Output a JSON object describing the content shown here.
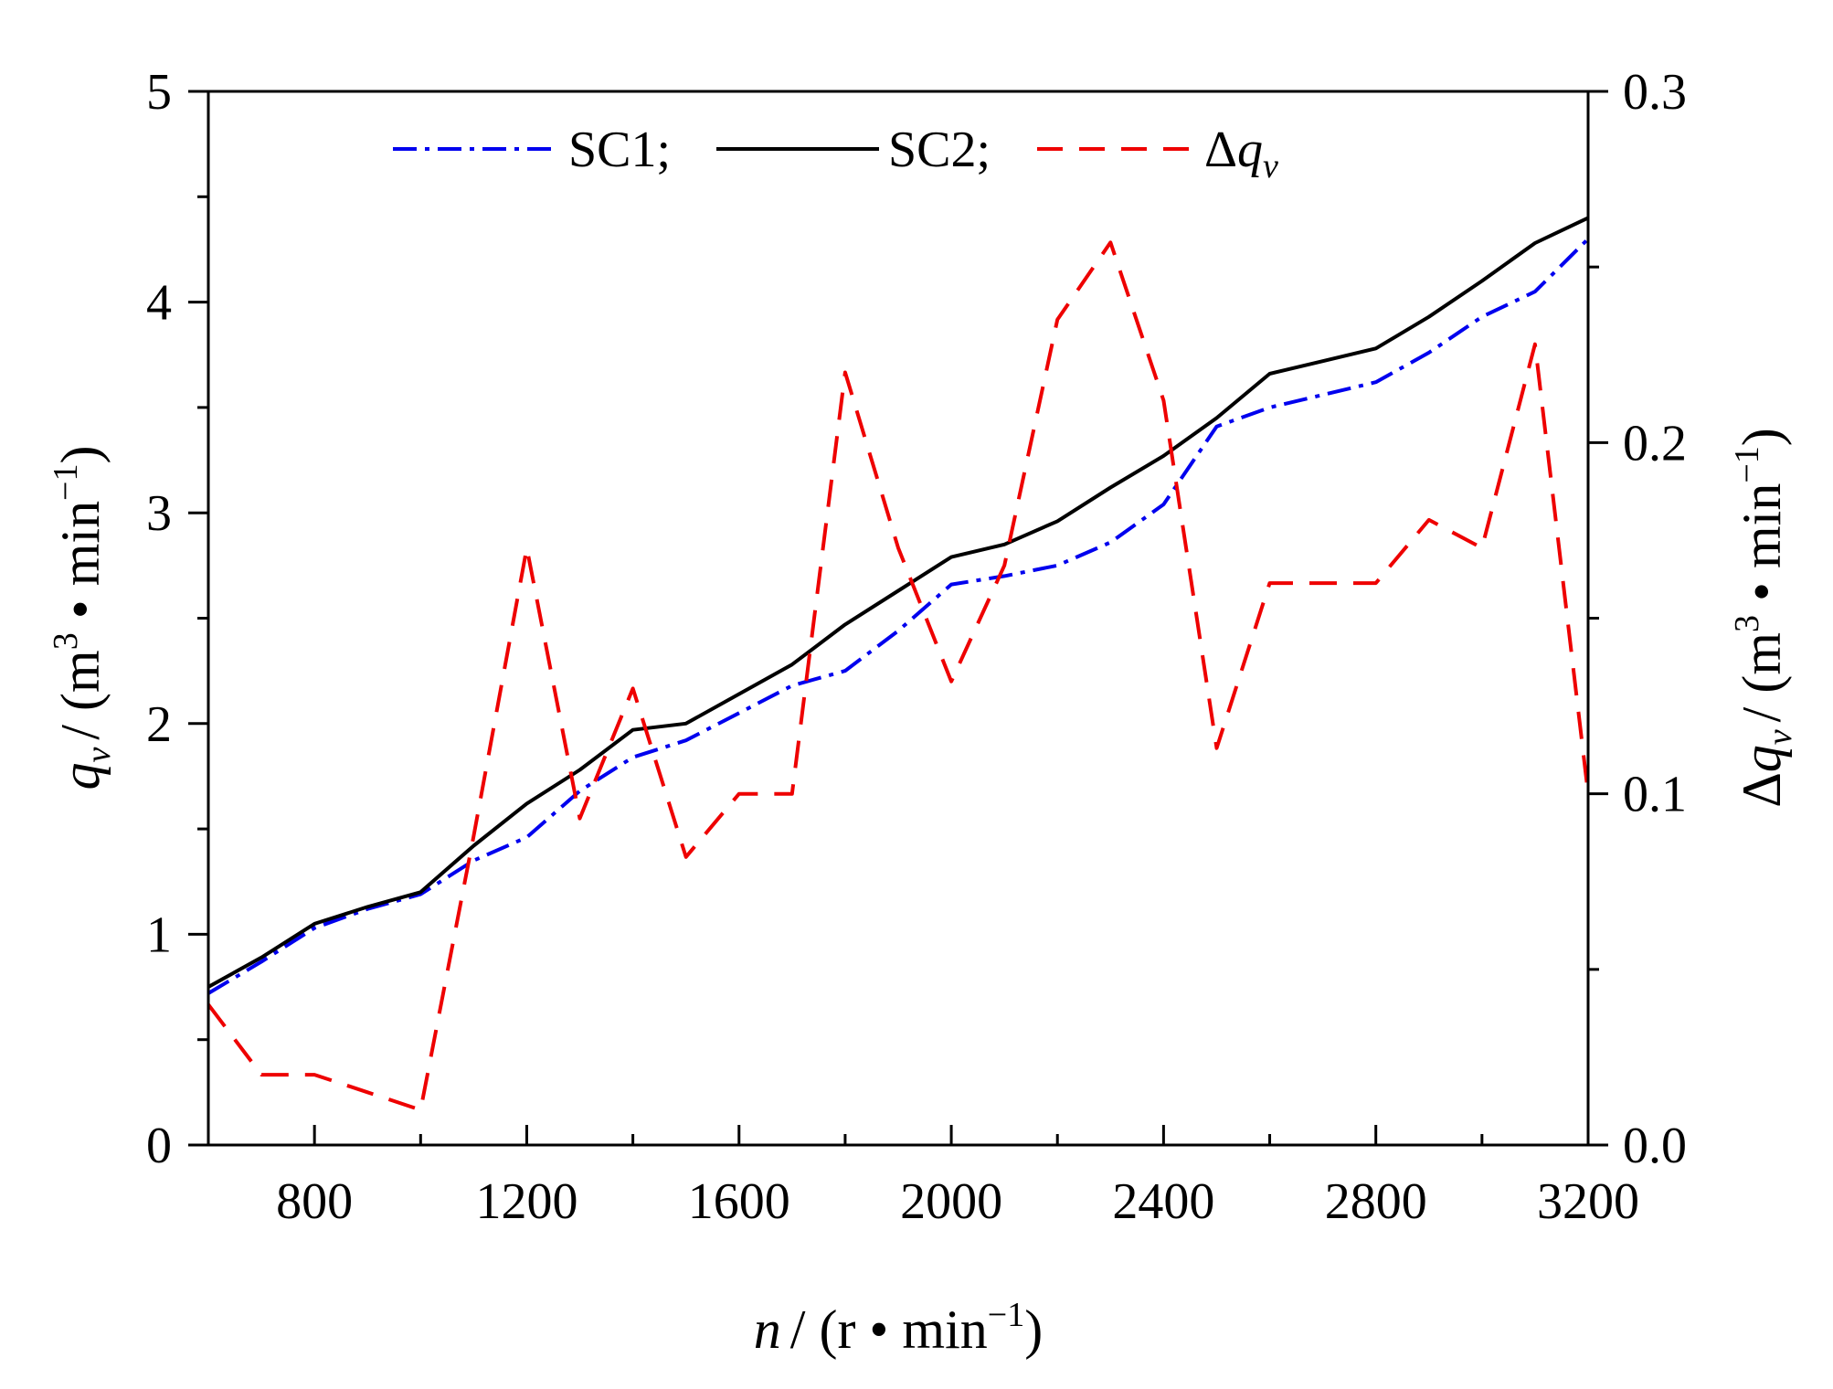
{
  "chart_data": {
    "type": "line",
    "x_axis": {
      "var": "n",
      "title_after": "/ (r • min",
      "sup": "−1",
      "close": ")",
      "range": [
        600,
        3200
      ],
      "ticks": [
        800,
        1200,
        1600,
        2000,
        2400,
        2800,
        3200
      ]
    },
    "y_axis_left": {
      "var": "q",
      "sub": "v",
      "title_after": "/ (m",
      "sup3": "3",
      "mid": " • min",
      "sup": "−1",
      "close": ")",
      "range": [
        0,
        5
      ],
      "ticks": [
        0,
        1,
        2,
        3,
        4,
        5
      ],
      "tick_labels": [
        "0",
        "1",
        "2",
        "3",
        "4",
        "5"
      ]
    },
    "y_axis_right": {
      "prefix": "Δ",
      "var": "q",
      "sub": "v",
      "title_after": "/ (m",
      "sup3": "3",
      "mid": " • min",
      "sup": "−1",
      "close": ")",
      "range": [
        0,
        0.3
      ],
      "ticks": [
        0,
        0.1,
        0.2,
        0.3
      ],
      "tick_labels": [
        "0.0",
        "0.1",
        "0.2",
        "0.3"
      ]
    },
    "x": [
      600,
      700,
      800,
      900,
      1000,
      1100,
      1200,
      1300,
      1400,
      1500,
      1600,
      1700,
      1800,
      1900,
      2000,
      2100,
      2200,
      2300,
      2400,
      2500,
      2600,
      2700,
      2800,
      2900,
      3000,
      3100,
      3200
    ],
    "series": [
      {
        "name": "SC1",
        "legend_label": "SC1;",
        "axis": "left",
        "color": "#0000ee",
        "dash": "dashdot",
        "values": [
          0.72,
          0.87,
          1.03,
          1.12,
          1.19,
          1.35,
          1.46,
          1.68,
          1.84,
          1.92,
          2.05,
          2.18,
          2.25,
          2.44,
          2.66,
          2.7,
          2.75,
          2.86,
          3.04,
          3.41,
          3.5,
          3.56,
          3.62,
          3.76,
          3.93,
          4.05,
          4.3
        ]
      },
      {
        "name": "SC2",
        "legend_label": "SC2;",
        "axis": "left",
        "color": "#000000",
        "dash": "solid",
        "values": [
          0.75,
          0.89,
          1.05,
          1.13,
          1.2,
          1.42,
          1.62,
          1.78,
          1.97,
          2.0,
          2.14,
          2.28,
          2.47,
          2.63,
          2.79,
          2.85,
          2.96,
          3.12,
          3.27,
          3.45,
          3.66,
          3.72,
          3.78,
          3.93,
          4.1,
          4.28,
          4.4
        ]
      },
      {
        "name": "Δqv",
        "legend_label": "Δqv",
        "legend_prefix": "Δ",
        "legend_var": "q",
        "legend_sub": "v",
        "axis": "right",
        "color": "#ee0000",
        "dash": "dashed",
        "values": [
          0.04,
          0.02,
          0.02,
          0.015,
          0.01,
          0.088,
          0.17,
          0.093,
          0.13,
          0.082,
          0.1,
          0.1,
          0.22,
          0.17,
          0.132,
          0.165,
          0.235,
          0.257,
          0.212,
          0.113,
          0.16,
          0.16,
          0.16,
          0.178,
          0.17,
          0.228,
          0.1
        ]
      }
    ],
    "legend_position": "top-center",
    "grid": false
  }
}
